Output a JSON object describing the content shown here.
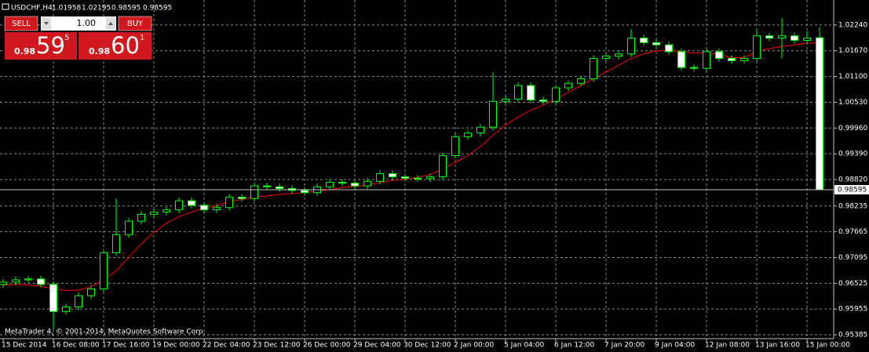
{
  "chart_data": {
    "type": "candlestick",
    "symbol": "USDCHF,H4",
    "watermark": "MetaTrader 4, © 2001-2014, MetaQuotes Software Corp.",
    "categories": [
      "15 Dec 2014",
      null,
      null,
      null,
      "16 Dec 08:00",
      null,
      null,
      null,
      "17 Dec 16:00",
      null,
      null,
      null,
      "19 Dec 00:00",
      null,
      null,
      null,
      "22 Dec 04:00",
      null,
      null,
      null,
      "23 Dec 12:00",
      null,
      null,
      null,
      "26 Dec 00:00",
      null,
      null,
      null,
      "29 Dec 04:00",
      null,
      null,
      null,
      "30 Dec 12:00",
      null,
      null,
      null,
      "2 Jan 00:00",
      null,
      null,
      null,
      "5 Jan 04:00",
      null,
      null,
      null,
      "6 Jan 12:00",
      null,
      null,
      null,
      "7 Jan 20:00",
      null,
      null,
      null,
      "9 Jan 04:00",
      null,
      null,
      null,
      "12 Jan 08:00",
      null,
      null,
      null,
      "13 Jan 16:00",
      null,
      null,
      null,
      "15 Jan 00:00",
      null
    ],
    "open": [
      0.965,
      0.9655,
      0.966,
      0.9662,
      0.965,
      0.959,
      0.96,
      0.9625,
      0.964,
      0.972,
      0.976,
      0.979,
      0.9805,
      0.981,
      0.9815,
      0.9835,
      0.9825,
      0.9815,
      0.982,
      0.9843,
      0.984,
      0.9868,
      0.9866,
      0.9862,
      0.9858,
      0.9853,
      0.9866,
      0.9876,
      0.9874,
      0.9868,
      0.9878,
      0.9895,
      0.9888,
      0.9885,
      0.9884,
      0.9888,
      0.9935,
      0.9977,
      0.9985,
      0.9998,
      1.0055,
      1.006,
      1.009,
      1.0058,
      1.0055,
      1.0085,
      1.0095,
      1.0105,
      1.015,
      1.0155,
      1.016,
      1.0195,
      1.0185,
      1.018,
      1.0165,
      1.013,
      1.0128,
      1.0165,
      1.015,
      1.0145,
      1.015,
      1.02,
      1.0195,
      1.02,
      1.019,
      1.01958
    ],
    "high": [
      0.9662,
      0.9667,
      0.9669,
      0.9669,
      0.9657,
      0.9607,
      0.9632,
      0.9647,
      0.9727,
      0.984,
      0.9797,
      0.9812,
      0.9817,
      0.9822,
      0.9842,
      0.9842,
      0.9832,
      0.9827,
      0.985,
      0.985,
      0.9875,
      0.9875,
      0.9873,
      0.9869,
      0.9865,
      0.9873,
      0.9883,
      0.9883,
      0.9881,
      0.9885,
      0.9902,
      0.9902,
      0.9895,
      0.9892,
      0.9895,
      0.9942,
      0.9984,
      0.9992,
      1.0005,
      1.012,
      1.0067,
      1.0097,
      1.0097,
      1.0065,
      1.0092,
      1.0102,
      1.0112,
      1.0157,
      1.0162,
      1.0167,
      1.0215,
      1.0202,
      1.0192,
      1.0187,
      1.0172,
      1.0137,
      1.0172,
      1.0172,
      1.0157,
      1.0157,
      1.0215,
      1.0207,
      1.024,
      1.0207,
      1.021,
      1.02195
    ],
    "low": [
      0.9643,
      0.9648,
      0.9653,
      0.9643,
      0.9548,
      0.9583,
      0.9593,
      0.9618,
      0.9633,
      0.9713,
      0.9753,
      0.9783,
      0.9798,
      0.9803,
      0.9808,
      0.9818,
      0.9808,
      0.9808,
      0.9813,
      0.9833,
      0.9833,
      0.9859,
      0.9855,
      0.9851,
      0.9846,
      0.9846,
      0.9859,
      0.9867,
      0.9861,
      0.9861,
      0.9871,
      0.9881,
      0.9878,
      0.9877,
      0.9877,
      0.9881,
      0.9928,
      0.997,
      0.9978,
      0.9991,
      1.0048,
      1.0053,
      1.0051,
      1.0048,
      1.0048,
      1.0078,
      1.0088,
      1.0098,
      1.0143,
      1.0148,
      1.0153,
      1.0178,
      1.0173,
      1.0158,
      1.0123,
      1.0121,
      1.0121,
      1.0143,
      1.0138,
      1.0138,
      1.0143,
      1.0188,
      1.015,
      1.0183,
      1.0183,
      0.98595
    ],
    "close": [
      0.9655,
      0.966,
      0.9662,
      0.965,
      0.959,
      0.96,
      0.9625,
      0.964,
      0.972,
      0.976,
      0.979,
      0.9805,
      0.981,
      0.9815,
      0.9835,
      0.9825,
      0.9815,
      0.982,
      0.9843,
      0.984,
      0.9868,
      0.9866,
      0.9862,
      0.9858,
      0.9853,
      0.9866,
      0.9876,
      0.9874,
      0.9868,
      0.9878,
      0.9895,
      0.9888,
      0.9885,
      0.9884,
      0.9888,
      0.9935,
      0.9977,
      0.9985,
      0.9998,
      1.0055,
      1.006,
      1.009,
      1.0058,
      1.0055,
      1.0085,
      1.0095,
      1.0105,
      1.015,
      1.0155,
      1.016,
      1.0195,
      1.0185,
      1.018,
      1.0165,
      1.013,
      1.0128,
      1.0165,
      1.015,
      1.0145,
      1.015,
      1.02,
      1.0195,
      1.02,
      1.019,
      1.0195,
      0.98595
    ],
    "ma": {
      "color": "#ff0000",
      "values": [
        0.9648,
        0.965,
        0.9649,
        0.9646,
        0.964,
        0.9637,
        0.9637,
        0.9645,
        0.966,
        0.968,
        0.971,
        0.974,
        0.9765,
        0.9785,
        0.98,
        0.981,
        0.9818,
        0.9825,
        0.9833,
        0.9838,
        0.9843,
        0.9846,
        0.9849,
        0.9851,
        0.9853,
        0.9856,
        0.986,
        0.9864,
        0.9867,
        0.987,
        0.9875,
        0.988,
        0.9883,
        0.9887,
        0.9893,
        0.9905,
        0.992,
        0.9935,
        0.9955,
        0.998,
        1.0003,
        1.002,
        1.0035,
        1.0047,
        1.006,
        1.0075,
        1.009,
        1.0105,
        1.012,
        1.0135,
        1.015,
        1.016,
        1.0167,
        1.0168,
        1.0165,
        1.0162,
        1.0162,
        1.0158,
        1.0152,
        1.0152,
        1.0165,
        1.0172,
        1.0176,
        1.018,
        1.0184,
        1.0184
      ]
    },
    "bull_color": "#000000",
    "bear_color": "#ffffff",
    "outline_color": "#00ff00",
    "ylim": [
      0.95299,
      1.02793
    ],
    "yticks": [
      {
        "value": 1.0224,
        "label": "1.02240"
      },
      {
        "value": 1.0167,
        "label": "1.01670"
      },
      {
        "value": 1.011,
        "label": "1.01100"
      },
      {
        "value": 1.0053,
        "label": "1.00530"
      },
      {
        "value": 0.9996,
        "label": "0.99960"
      },
      {
        "value": 0.9939,
        "label": "0.99390"
      },
      {
        "value": 0.9882,
        "label": "0.98820"
      },
      0.98235,
      0.97665,
      0.97095,
      0.96525,
      0.95955,
      0.95385
    ],
    "grid": true
  },
  "trade_panel": {
    "sell": "SELL",
    "lot": "1.00",
    "buy": "BUY",
    "bid": {
      "prefix": "0.98",
      "big": "59",
      "small": "5"
    },
    "ask": {
      "prefix": "0.98",
      "big": "60",
      "small": "1"
    }
  }
}
